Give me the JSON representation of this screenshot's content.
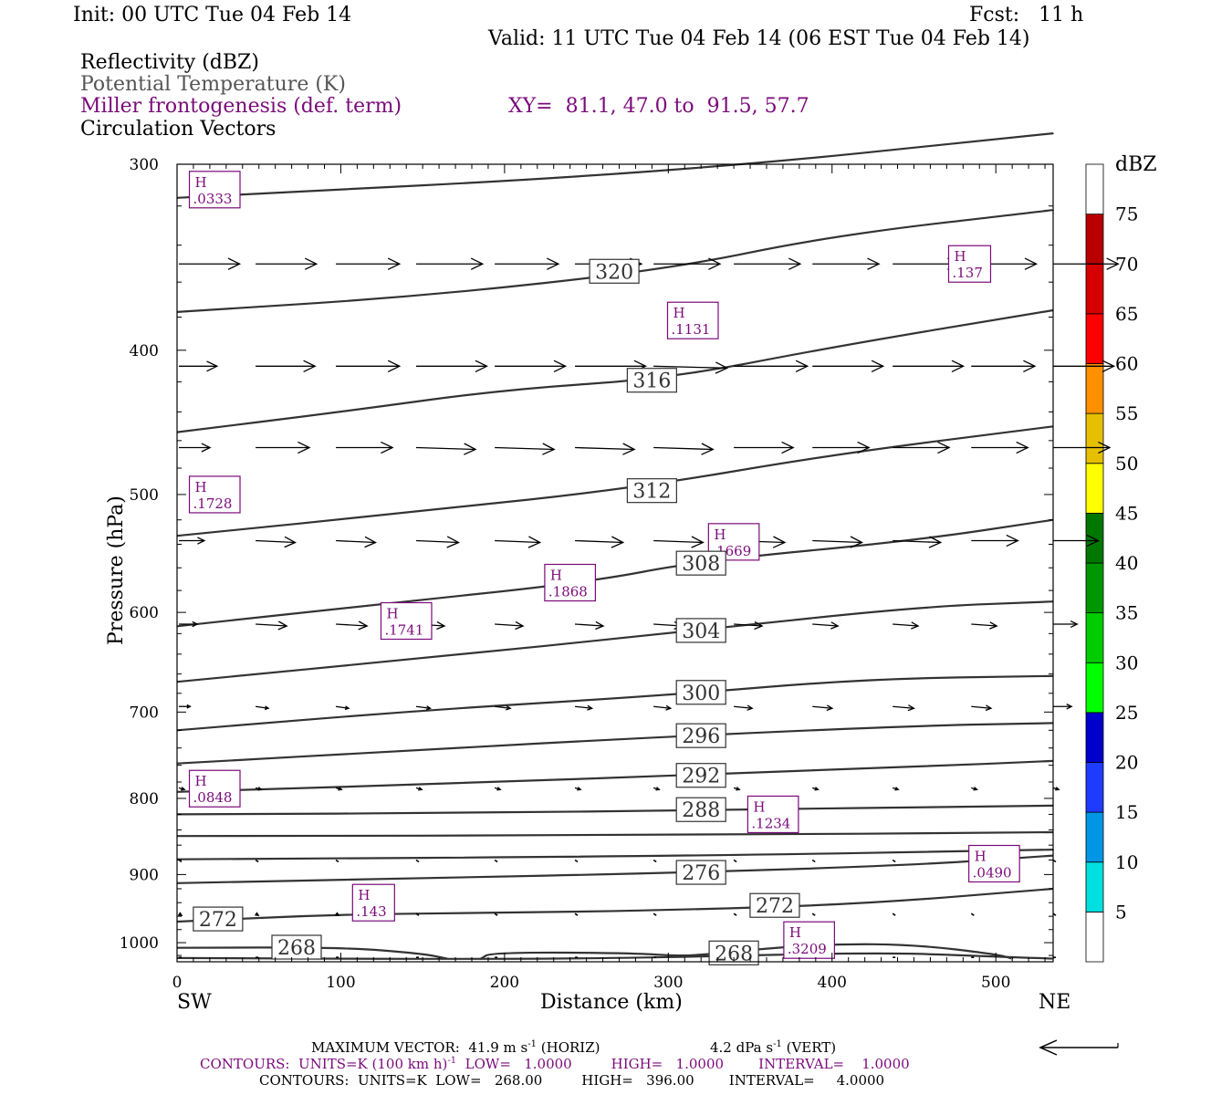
{
  "header": {
    "init": "Init: 00 UTC Tue 04 Feb 14",
    "fcst": "Fcst:   11 h",
    "valid": "Valid: 11 UTC Tue 04 Feb 14 (06 EST Tue 04 Feb 14)",
    "field1": "Reflectivity (dBZ)",
    "field2": "Potential Temperature (K)",
    "field3": "Miller frontogenesis (def. term)",
    "xy": "XY=  81.1, 47.0 to  91.5, 57.7",
    "field4": "Circulation Vectors"
  },
  "colors": {
    "theta_contour": "#333333",
    "frontogenesis": "#7a0a7a",
    "vector": "#000000"
  },
  "chart_data": {
    "type": "cross-section",
    "xlabel": "Distance (km)",
    "ylabel": "Pressure (hPa)",
    "xlim": [
      0,
      535
    ],
    "ylim": [
      1030,
      300
    ],
    "y_scale": "log",
    "x_ticks": [
      "0",
      "100",
      "200",
      "300",
      "400",
      "500"
    ],
    "y_ticks": [
      "300",
      "400",
      "500",
      "600",
      "700",
      "800",
      "900",
      "1000"
    ],
    "x_end_labels": {
      "left": "SW",
      "right": "NE"
    },
    "colorbar": {
      "unit": "dBZ",
      "levels": [
        "5",
        "10",
        "15",
        "20",
        "25",
        "30",
        "35",
        "40",
        "45",
        "50",
        "55",
        "60",
        "65",
        "70",
        "75"
      ],
      "colors": [
        "#00e0e0",
        "#0096e6",
        "#1e3cff",
        "#0000cc",
        "#00ff00",
        "#00cc00",
        "#009600",
        "#007800",
        "#ffff00",
        "#e6c000",
        "#ff9000",
        "#ff0000",
        "#d60000",
        "#b80000",
        "#ff00ff",
        "#9650c8",
        "#ffffff"
      ]
    },
    "theta_contours": [
      {
        "label": "",
        "points": [
          [
            0,
            316
          ],
          [
            300,
            304
          ],
          [
            535,
            286
          ]
        ]
      },
      {
        "label": "320",
        "points": [
          [
            0,
            377
          ],
          [
            150,
            368
          ],
          [
            300,
            353
          ],
          [
            400,
            335
          ],
          [
            535,
            322
          ]
        ]
      },
      {
        "label": "316",
        "points": [
          [
            0,
            454
          ],
          [
            100,
            440
          ],
          [
            200,
            425
          ],
          [
            300,
            418
          ],
          [
            400,
            398
          ],
          [
            535,
            376
          ]
        ]
      },
      {
        "label": "312",
        "points": [
          [
            0,
            533
          ],
          [
            150,
            513
          ],
          [
            280,
            495
          ],
          [
            400,
            470
          ],
          [
            535,
            450
          ]
        ]
      },
      {
        "label": "308",
        "points": [
          [
            0,
            613
          ],
          [
            120,
            593
          ],
          [
            250,
            573
          ],
          [
            320,
            554
          ],
          [
            450,
            537
          ],
          [
            535,
            520
          ]
        ]
      },
      {
        "label": "304",
        "points": [
          [
            0,
            668
          ],
          [
            150,
            644
          ],
          [
            300,
            620
          ],
          [
            450,
            595
          ],
          [
            535,
            590
          ]
        ]
      },
      {
        "label": "300",
        "points": [
          [
            0,
            720
          ],
          [
            150,
            698
          ],
          [
            300,
            682
          ],
          [
            420,
            665
          ],
          [
            535,
            662
          ]
        ]
      },
      {
        "label": "296",
        "points": [
          [
            0,
            758
          ],
          [
            150,
            742
          ],
          [
            300,
            727
          ],
          [
            450,
            715
          ],
          [
            535,
            712
          ]
        ]
      },
      {
        "label": "292",
        "points": [
          [
            0,
            792
          ],
          [
            200,
            780
          ],
          [
            300,
            772
          ],
          [
            450,
            762
          ],
          [
            535,
            755
          ]
        ]
      },
      {
        "label": "288",
        "points": [
          [
            0,
            820
          ],
          [
            200,
            818
          ],
          [
            300,
            815
          ],
          [
            535,
            809
          ]
        ]
      },
      {
        "label": "",
        "points": [
          [
            0,
            848
          ],
          [
            300,
            847
          ],
          [
            535,
            843
          ]
        ]
      },
      {
        "label": "",
        "points": [
          [
            0,
            879
          ],
          [
            300,
            875
          ],
          [
            535,
            866
          ]
        ]
      },
      {
        "label": "276",
        "points": [
          [
            0,
            912
          ],
          [
            150,
            905
          ],
          [
            300,
            898
          ],
          [
            450,
            887
          ],
          [
            535,
            874
          ]
        ]
      },
      {
        "label": "272",
        "points": [
          [
            0,
            968
          ],
          [
            100,
            957
          ],
          [
            200,
            955
          ],
          [
            300,
            951
          ],
          [
            420,
            942
          ],
          [
            535,
            920
          ]
        ]
      },
      {
        "label": "268",
        "points": [
          [
            0,
            1008
          ],
          [
            100,
            1007
          ],
          [
            150,
            1017
          ],
          [
            165,
            1025
          ]
        ]
      },
      {
        "label": "268",
        "points": [
          [
            185,
            1026
          ],
          [
            192,
            1015
          ],
          [
            280,
            1016
          ],
          [
            310,
            1022
          ],
          [
            350,
            1011
          ],
          [
            400,
            1002
          ],
          [
            450,
            1003
          ],
          [
            500,
            1018
          ],
          [
            510,
            1025
          ]
        ]
      },
      {
        "label": "",
        "points": [
          [
            0,
            1024
          ],
          [
            200,
            1026
          ],
          [
            300,
            1023
          ],
          [
            430,
            1015
          ],
          [
            500,
            1022
          ],
          [
            535,
            1025
          ]
        ]
      }
    ],
    "frontogenesis_maxima": [
      {
        "label": "H",
        "value": ".0333",
        "x": 23,
        "p": 312
      },
      {
        "label": "H",
        "value": ".1131",
        "x": 315,
        "p": 382
      },
      {
        "label": "H",
        "value": ".137",
        "x": 484,
        "p": 350
      },
      {
        "label": "H",
        "value": ".1728",
        "x": 23,
        "p": 500
      },
      {
        "label": "H",
        "value": ".1669",
        "x": 340,
        "p": 538
      },
      {
        "label": "H",
        "value": ".1868",
        "x": 240,
        "p": 573
      },
      {
        "label": "H",
        "value": ".1741",
        "x": 140,
        "p": 608
      },
      {
        "label": "H",
        "value": ".0848",
        "x": 23,
        "p": 788
      },
      {
        "label": "H",
        "value": ".1234",
        "x": 364,
        "p": 820
      },
      {
        "label": "H",
        "value": ".0490",
        "x": 499,
        "p": 885
      },
      {
        "label": "H",
        "value": ".143",
        "x": 120,
        "p": 940
      },
      {
        "label": "H",
        "value": ".3209",
        "x": 386,
        "p": 996
      }
    ],
    "vectors": {
      "x": [
        0,
        48,
        97,
        146,
        194,
        243,
        291,
        340,
        388,
        437,
        485,
        535
      ],
      "levels": [
        {
          "p": 350,
          "u": [
            43,
            43,
            45,
            47,
            45,
            47,
            47,
            47,
            47,
            47,
            46,
            46
          ],
          "w": [
            0,
            0,
            0,
            0,
            0,
            0,
            0,
            0,
            0,
            0,
            0,
            0
          ]
        },
        {
          "p": 410,
          "u": [
            27,
            42,
            45,
            50,
            50,
            50,
            52,
            52,
            50,
            50,
            45,
            43
          ],
          "w": [
            0,
            0,
            0,
            0,
            0,
            0,
            1,
            0,
            0,
            0,
            0,
            0
          ]
        },
        {
          "p": 465,
          "u": [
            22,
            38,
            40,
            42,
            42,
            42,
            42,
            42,
            40,
            40,
            40,
            40
          ],
          "w": [
            0,
            0,
            0,
            1,
            1,
            1,
            1,
            0,
            0,
            0,
            0,
            0
          ]
        },
        {
          "p": 537,
          "u": [
            18,
            28,
            28,
            30,
            32,
            34,
            35,
            36,
            35,
            34,
            33,
            32
          ],
          "w": [
            0,
            1,
            1,
            1,
            1,
            1,
            1,
            1,
            1,
            1,
            0,
            0
          ]
        },
        {
          "p": 611,
          "u": [
            13,
            22,
            22,
            20,
            20,
            20,
            20,
            20,
            18,
            18,
            18,
            17
          ],
          "w": [
            0,
            1,
            1,
            1,
            1,
            1,
            1,
            1,
            1,
            1,
            1,
            0
          ]
        },
        {
          "p": 694,
          "u": [
            8,
            9,
            9,
            10,
            11,
            12,
            12,
            13,
            14,
            15,
            14,
            13
          ],
          "w": [
            0,
            1,
            1,
            1,
            1,
            1,
            1,
            1,
            1,
            1,
            1,
            0
          ]
        },
        {
          "p": 787,
          "u": [
            4,
            4,
            4,
            4,
            4,
            4,
            4,
            4,
            4,
            4,
            4,
            4
          ],
          "w": [
            1,
            1,
            1,
            1,
            1,
            1,
            1,
            1,
            1,
            1,
            1,
            1
          ]
        },
        {
          "p": 880,
          "u": [
            1,
            1,
            1,
            1,
            1,
            1,
            1,
            1,
            1,
            1,
            3,
            1
          ],
          "w": [
            1,
            1,
            1,
            1,
            1,
            1,
            1,
            1,
            1,
            1,
            1,
            1
          ]
        },
        {
          "p": 956,
          "u": [
            2,
            2,
            2,
            1,
            1,
            1,
            1,
            1,
            1,
            1,
            1,
            1
          ],
          "w": [
            1,
            1,
            1,
            1,
            1,
            1,
            1,
            1,
            1,
            1,
            1,
            1
          ]
        },
        {
          "p": 1023,
          "u": [
            1,
            1,
            1,
            1,
            1,
            1,
            1,
            1,
            1,
            1,
            1,
            1
          ],
          "w": [
            0,
            0,
            0,
            0,
            0,
            0,
            0,
            0,
            0,
            0,
            0,
            0
          ]
        }
      ]
    },
    "footer": {
      "max_vector": "MAXIMUM VECTOR:  41.9 m s",
      "horiz": "(HORIZ)",
      "vert_val": "4.2 dPa s",
      "vert": "(VERT)",
      "contours1_units": "CONTOURS:  UNITS=K (100 km h)",
      "contours1_rest": "  LOW=   1.0000         HIGH=   1.0000        INTERVAL=    1.0000",
      "contours2": "CONTOURS:  UNITS=K  LOW=   268.00         HIGH=   396.00        INTERVAL=     4.0000",
      "sup": "-1"
    }
  }
}
